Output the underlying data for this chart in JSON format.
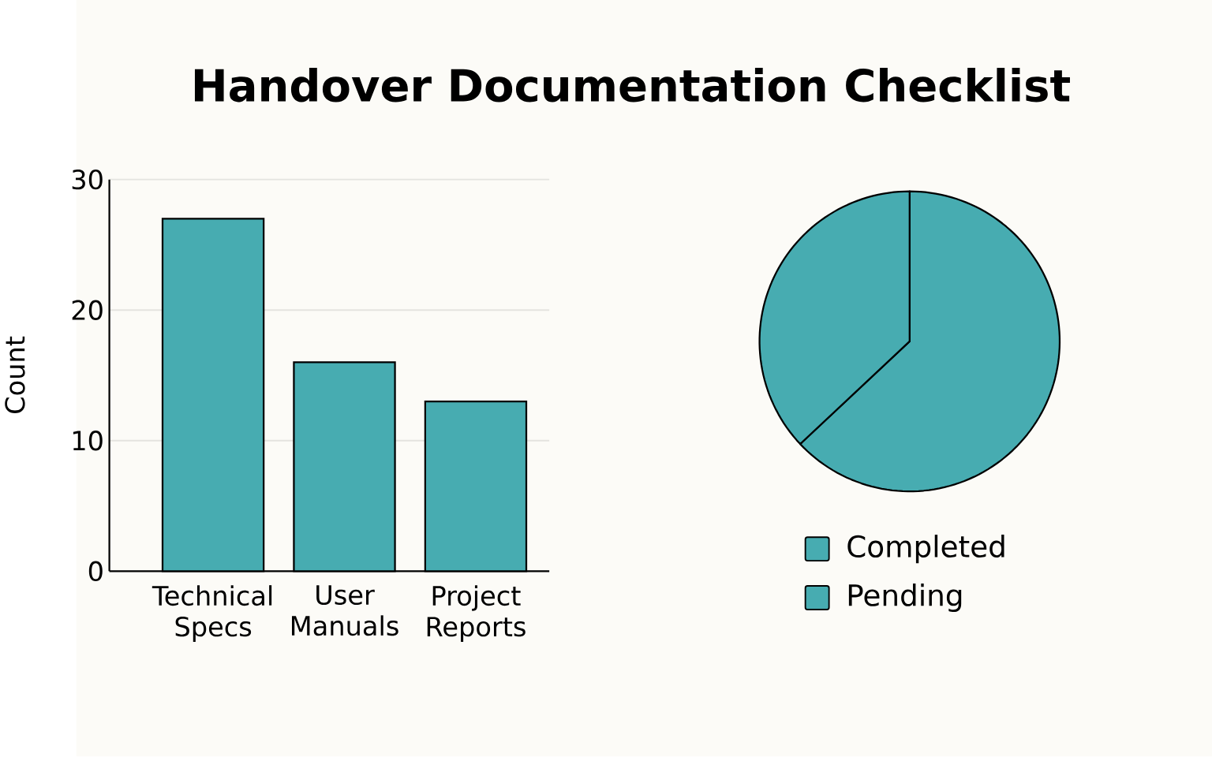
{
  "chart_data": [
    {
      "type": "bar",
      "title": "Handover Documentation Checklist",
      "ylabel": "Count",
      "categories": [
        "Technical Specs",
        "User Manuals",
        "Project Reports"
      ],
      "values": [
        27,
        16,
        13
      ],
      "color": "#47acb1",
      "ylim": [
        0,
        30
      ],
      "yticks": [
        0,
        10,
        20,
        30
      ],
      "grid": "y"
    },
    {
      "type": "pie",
      "categories": [
        "Completed",
        "Pending"
      ],
      "values": [
        63,
        37
      ],
      "colors": [
        "#47acb1",
        "#47acb1"
      ],
      "legend": "bottom"
    }
  ]
}
